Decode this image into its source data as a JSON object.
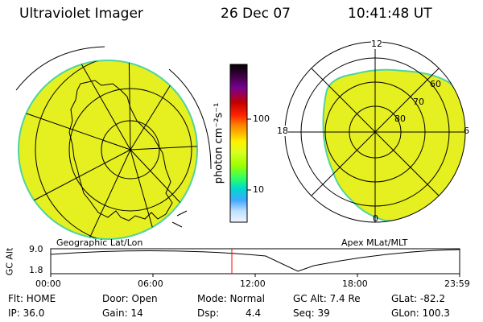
{
  "header": {
    "instrument": "Ultraviolet Imager",
    "date": "26 Dec 07",
    "time": "10:41:48 UT"
  },
  "colorbar": {
    "label": "photon cm⁻²s⁻¹",
    "ticks": [
      "100",
      "10"
    ],
    "colors": [
      "#000000",
      "#3a0040",
      "#7a0090",
      "#c00000",
      "#ff2000",
      "#ff7a00",
      "#ffb000",
      "#fff200",
      "#d8ff20",
      "#9cff00",
      "#30ff60",
      "#00d8d0",
      "#40a8ff",
      "#bfe0ff",
      "#f0f4ff"
    ]
  },
  "geo_map": {
    "caption": "Geographic Lat/Lon",
    "fill_color": "#e6ef1f"
  },
  "mag_map": {
    "caption": "Apex MLat/MLT",
    "fill_color": "#e6ef1f",
    "mlt_labels": {
      "top": "12",
      "left": "18",
      "right": "6",
      "bottom": "0"
    },
    "lat_labels": [
      "60",
      "70",
      "80"
    ]
  },
  "altitude_plot": {
    "ylabel": "GC Alt",
    "y_ticks": [
      "9.0",
      "1.8"
    ],
    "x_ticks": [
      "00:00",
      "06:00",
      "12:00",
      "18:00",
      "23:59"
    ],
    "marker_color": "#ff0000"
  },
  "info": {
    "flt": "Flt: HOME",
    "ip": "IP: 36.0",
    "door": "Door: Open",
    "gain": "Gain: 14",
    "mode": "Mode: Normal",
    "dsp_label": "Dsp:",
    "dsp_value": "4.4",
    "gc_alt": "GC Alt: 7.4 Re",
    "seq": "Seq: 39",
    "glat": "GLat: -82.2",
    "glon": "GLon: 100.3"
  }
}
